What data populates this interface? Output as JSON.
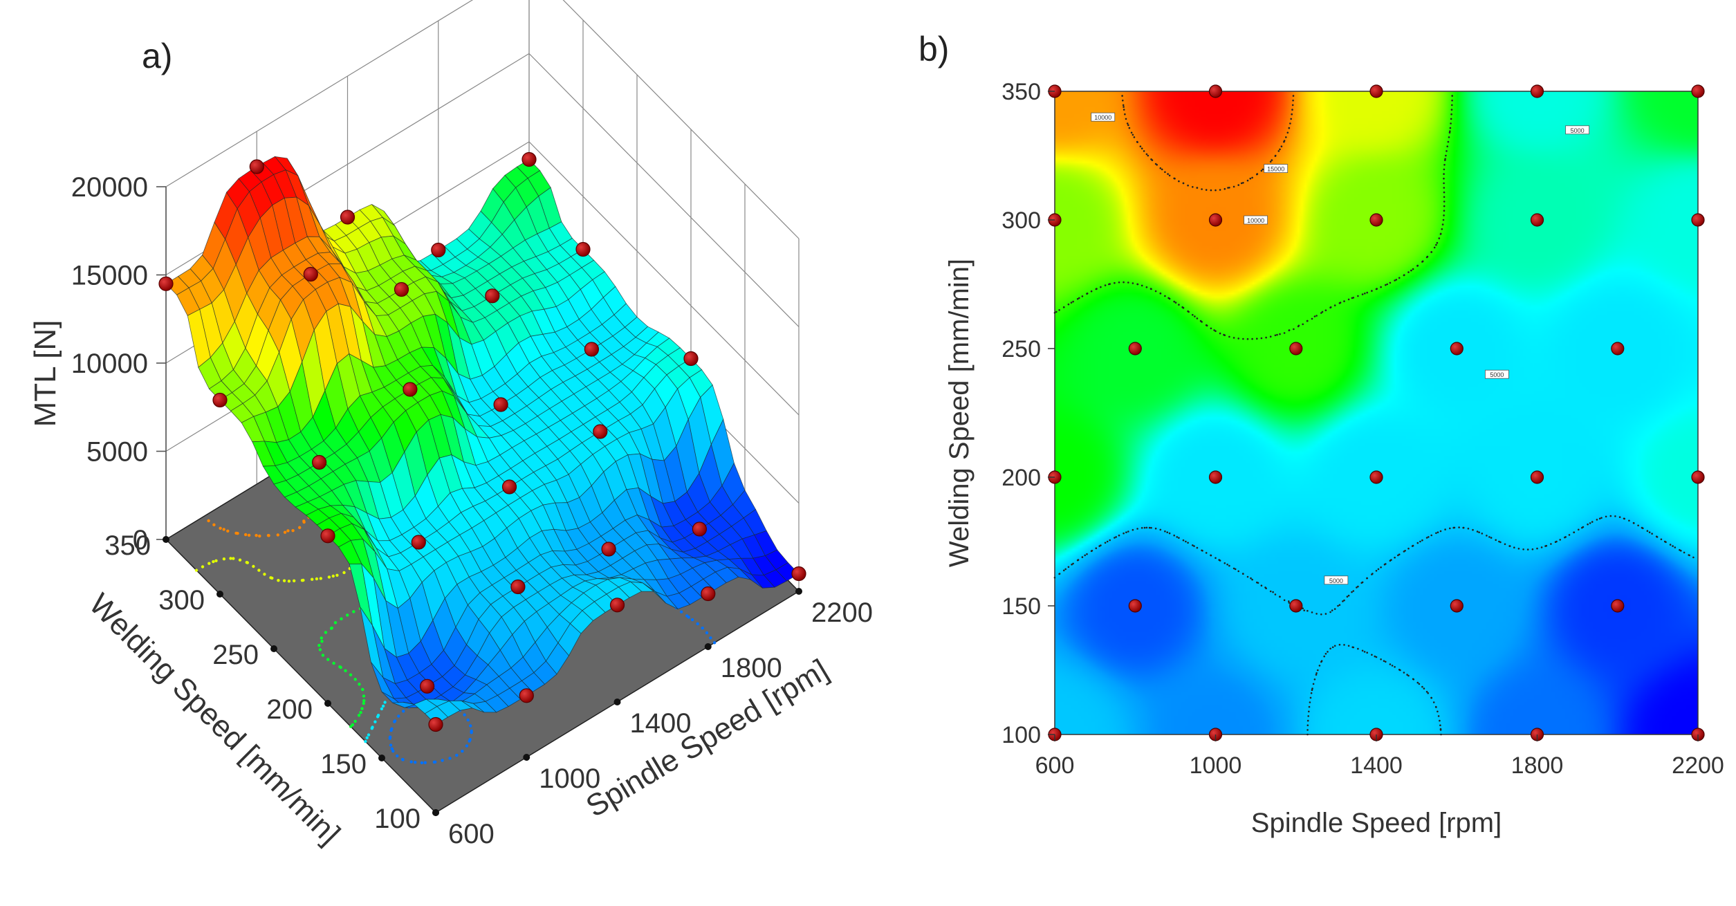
{
  "chart_data": [
    {
      "type": "surface3d",
      "panel_label": "a)",
      "zlabel": "MTL [N]",
      "xlabel": "Spindle Speed [rpm]",
      "ylabel": "Welding Speed [mm/min]",
      "x_ticks": [
        "600",
        "1000",
        "1400",
        "1800",
        "2200"
      ],
      "y_ticks": [
        "100",
        "150",
        "200",
        "250",
        "300",
        "350"
      ],
      "z_ticks": [
        "0",
        "5000",
        "10000",
        "15000",
        "20000"
      ],
      "xlim": [
        600,
        2200
      ],
      "ylim": [
        100,
        350
      ],
      "zlim": [
        0,
        20000
      ],
      "colormap": [
        "#0000ff",
        "#00a0ff",
        "#00ffff",
        "#00ff00",
        "#ffff00",
        "#ff8000",
        "#ff0000"
      ],
      "floor_color": "#666666"
    },
    {
      "type": "heatmap",
      "panel_label": "b)",
      "xlabel": "Spindle Speed [rpm]",
      "ylabel": "Welding Speed [mm/min]",
      "x_ticks": [
        "600",
        "1000",
        "1400",
        "1800",
        "2200"
      ],
      "y_ticks": [
        "100",
        "150",
        "200",
        "250",
        "300",
        "350"
      ],
      "xlim": [
        600,
        2200
      ],
      "ylim": [
        100,
        350
      ],
      "colormap": [
        "#0000ff",
        "#00a0ff",
        "#00ffff",
        "#00ff00",
        "#ffff00",
        "#ff8000",
        "#ff0000"
      ],
      "contour_labels": [
        "5000",
        "10000",
        "15000"
      ]
    }
  ],
  "design_points": [
    {
      "x": 600,
      "y": 100,
      "mtl": 5000
    },
    {
      "x": 1000,
      "y": 100,
      "mtl": 3500
    },
    {
      "x": 1400,
      "y": 100,
      "mtl": 5500
    },
    {
      "x": 1800,
      "y": 100,
      "mtl": 3000
    },
    {
      "x": 2200,
      "y": 100,
      "mtl": 1000
    },
    {
      "x": 800,
      "y": 150,
      "mtl": 2500
    },
    {
      "x": 1200,
      "y": 150,
      "mtl": 5000
    },
    {
      "x": 1600,
      "y": 150,
      "mtl": 4000
    },
    {
      "x": 2000,
      "y": 150,
      "mtl": 2000
    },
    {
      "x": 600,
      "y": 200,
      "mtl": 9500
    },
    {
      "x": 1000,
      "y": 200,
      "mtl": 6000
    },
    {
      "x": 1400,
      "y": 200,
      "mtl": 6000
    },
    {
      "x": 1800,
      "y": 200,
      "mtl": 6000
    },
    {
      "x": 2200,
      "y": 200,
      "mtl": 7000
    },
    {
      "x": 800,
      "y": 250,
      "mtl": 9000
    },
    {
      "x": 1200,
      "y": 250,
      "mtl": 10000
    },
    {
      "x": 1600,
      "y": 250,
      "mtl": 6000
    },
    {
      "x": 2000,
      "y": 250,
      "mtl": 6000
    },
    {
      "x": 600,
      "y": 300,
      "mtl": 11000
    },
    {
      "x": 1000,
      "y": 300,
      "mtl": 15000
    },
    {
      "x": 1400,
      "y": 300,
      "mtl": 11000
    },
    {
      "x": 1800,
      "y": 300,
      "mtl": 7500
    },
    {
      "x": 2200,
      "y": 300,
      "mtl": 7000
    },
    {
      "x": 600,
      "y": 350,
      "mtl": 14500
    },
    {
      "x": 1000,
      "y": 350,
      "mtl": 18000
    },
    {
      "x": 1400,
      "y": 350,
      "mtl": 12000
    },
    {
      "x": 1800,
      "y": 350,
      "mtl": 7000
    },
    {
      "x": 2200,
      "y": 350,
      "mtl": 9000
    }
  ]
}
